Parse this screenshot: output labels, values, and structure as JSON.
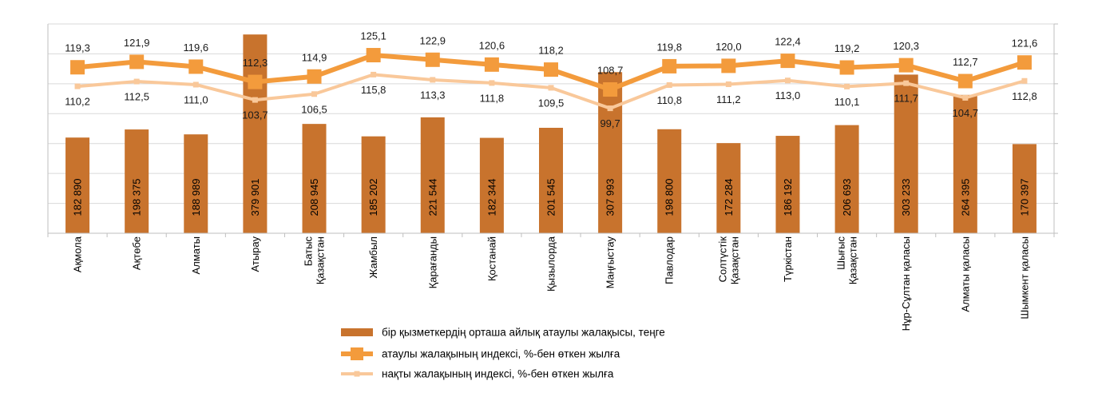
{
  "chart_data": {
    "type": "bar+line",
    "title": "",
    "xlabel": "",
    "ylabel": "",
    "grid": true,
    "legend_position": "bottom",
    "categories": [
      [
        "Ақмола"
      ],
      [
        "Ақтөбе"
      ],
      [
        "Алматы"
      ],
      [
        "Атырау"
      ],
      [
        "Батыс",
        "Қазақстан"
      ],
      [
        "Жамбыл"
      ],
      [
        "Қарағанды"
      ],
      [
        "Қостанай"
      ],
      [
        "Қызылорда"
      ],
      [
        "Маңғыстау"
      ],
      [
        "Павлодар"
      ],
      [
        "Солтүстік",
        "Қазақстан"
      ],
      [
        "Түркістан"
      ],
      [
        "Шығыс",
        "Қазақстан"
      ],
      [
        "Нұр-Сұлтан қаласы"
      ],
      [
        "Алматы қаласы"
      ],
      [
        "Шымкент қаласы"
      ]
    ],
    "series": [
      {
        "name": "бір қызметкердің орташа айлық атаулы жалақысы, теңге",
        "kind": "bar",
        "color": "#c8732d",
        "values": [
          182890,
          198375,
          188989,
          379901,
          208945,
          185202,
          221544,
          182344,
          201545,
          307993,
          198800,
          172284,
          186192,
          206693,
          303233,
          264395,
          170397
        ],
        "labels": [
          "182 890",
          "198 375",
          "188 989",
          "379 901",
          "208 945",
          "185 202",
          "221 544",
          "182 344",
          "201 545",
          "307 993",
          "198 800",
          "172 284",
          "186 192",
          "206 693",
          "303 233",
          "264 395",
          "170 397"
        ],
        "ylim": [
          0,
          400000
        ]
      },
      {
        "name": "атаулы жалақының индексі, %-бен өткен жылға",
        "kind": "line",
        "color": "#f39b3c",
        "values": [
          119.3,
          121.9,
          119.6,
          112.3,
          114.9,
          125.1,
          122.9,
          120.6,
          118.2,
          108.7,
          119.8,
          120.0,
          122.4,
          119.2,
          120.3,
          112.7,
          121.6
        ],
        "labels": [
          "119,3",
          "121,9",
          "119,6",
          "112,3",
          "114,9",
          "125,1",
          "122,9",
          "120,6",
          "118,2",
          "108,7",
          "119,8",
          "120,0",
          "122,4",
          "119,2",
          "120,3",
          "112,7",
          "121,6"
        ],
        "ylim": [
          40,
          140
        ]
      },
      {
        "name": "нақты жалақының индексі, %-бен өткен жылға",
        "kind": "line",
        "color": "#f9c89a",
        "values": [
          110.2,
          112.5,
          111.0,
          103.7,
          106.5,
          115.8,
          113.3,
          111.8,
          109.5,
          99.7,
          110.8,
          111.2,
          113.0,
          110.1,
          111.7,
          104.7,
          112.8
        ],
        "labels": [
          "110,2",
          "112,5",
          "111,0",
          "103,7",
          "106,5",
          "115,8",
          "113,3",
          "111,8",
          "109,5",
          "99,7",
          "110,8",
          "111,2",
          "113,0",
          "110,1",
          "111,7",
          "104,7",
          "112,8"
        ],
        "ylim": [
          40,
          140
        ]
      }
    ]
  }
}
